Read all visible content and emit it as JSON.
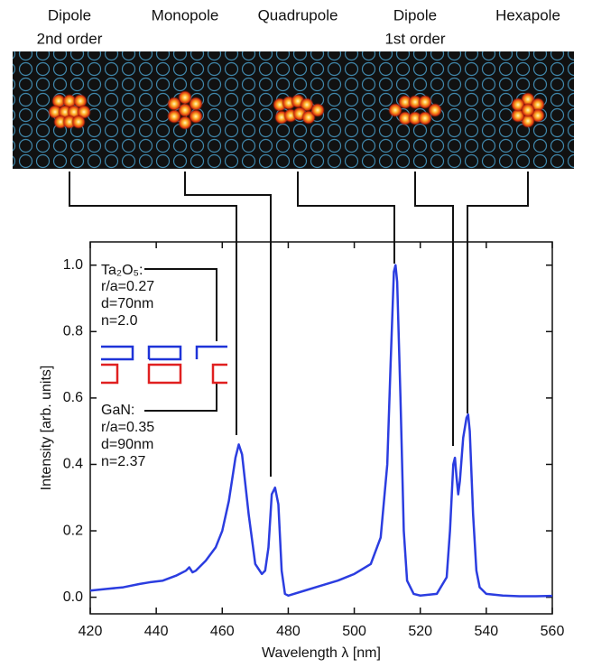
{
  "chart_data": {
    "type": "line",
    "mode_labels": [
      [
        "Dipole",
        "2nd order"
      ],
      [
        "Monopole"
      ],
      [
        "Quadrupole"
      ],
      [
        "Dipole",
        "1st order"
      ],
      [
        "Hexapole"
      ]
    ],
    "xlabel": "Wavelength λ [nm]",
    "ylabel": "Intensity [arb. units]",
    "annotations": [
      "Ta₂O₅:",
      "r/a=0.27",
      "d=70nm",
      "n=2.0",
      "GaN:",
      "r/a=0.35",
      "d=90nm",
      "n=2.37"
    ],
    "x": [
      420,
      425,
      430,
      435,
      438,
      442,
      446,
      449,
      450,
      451,
      452,
      455,
      458,
      460,
      462,
      464,
      465,
      466,
      468,
      470,
      472,
      473,
      474,
      475,
      476,
      477,
      478,
      479,
      480,
      485,
      490,
      495,
      500,
      505,
      508,
      510,
      511,
      512,
      512.5,
      513,
      514,
      515,
      516,
      518,
      520,
      525,
      528,
      529,
      530,
      530.5,
      531,
      531.5,
      532,
      533,
      534,
      534.5,
      535,
      536,
      537,
      538,
      540,
      545,
      550,
      555,
      560
    ],
    "series": [
      {
        "color": "#2b3de0",
        "values": [
          0.02,
          0.025,
          0.03,
          0.04,
          0.045,
          0.05,
          0.065,
          0.08,
          0.09,
          0.075,
          0.08,
          0.11,
          0.15,
          0.2,
          0.29,
          0.42,
          0.46,
          0.43,
          0.25,
          0.1,
          0.07,
          0.08,
          0.15,
          0.31,
          0.33,
          0.28,
          0.08,
          0.01,
          0.005,
          0.02,
          0.035,
          0.05,
          0.07,
          0.1,
          0.18,
          0.4,
          0.7,
          0.98,
          1.0,
          0.95,
          0.6,
          0.2,
          0.05,
          0.01,
          0.005,
          0.01,
          0.06,
          0.2,
          0.4,
          0.42,
          0.36,
          0.31,
          0.35,
          0.48,
          0.54,
          0.55,
          0.5,
          0.25,
          0.08,
          0.03,
          0.01,
          0.005,
          0.003,
          0.003,
          0.004
        ]
      }
    ],
    "xlim": [
      420,
      560
    ],
    "ylim": [
      -0.05,
      1.07
    ],
    "xticks": [
      420,
      440,
      460,
      480,
      500,
      520,
      540,
      560
    ],
    "yticks": [
      {
        "value": 0,
        "label": "0.0"
      },
      0.2,
      0.4,
      0.6,
      0.8,
      {
        "value": 1,
        "label": "1.0"
      }
    ]
  }
}
